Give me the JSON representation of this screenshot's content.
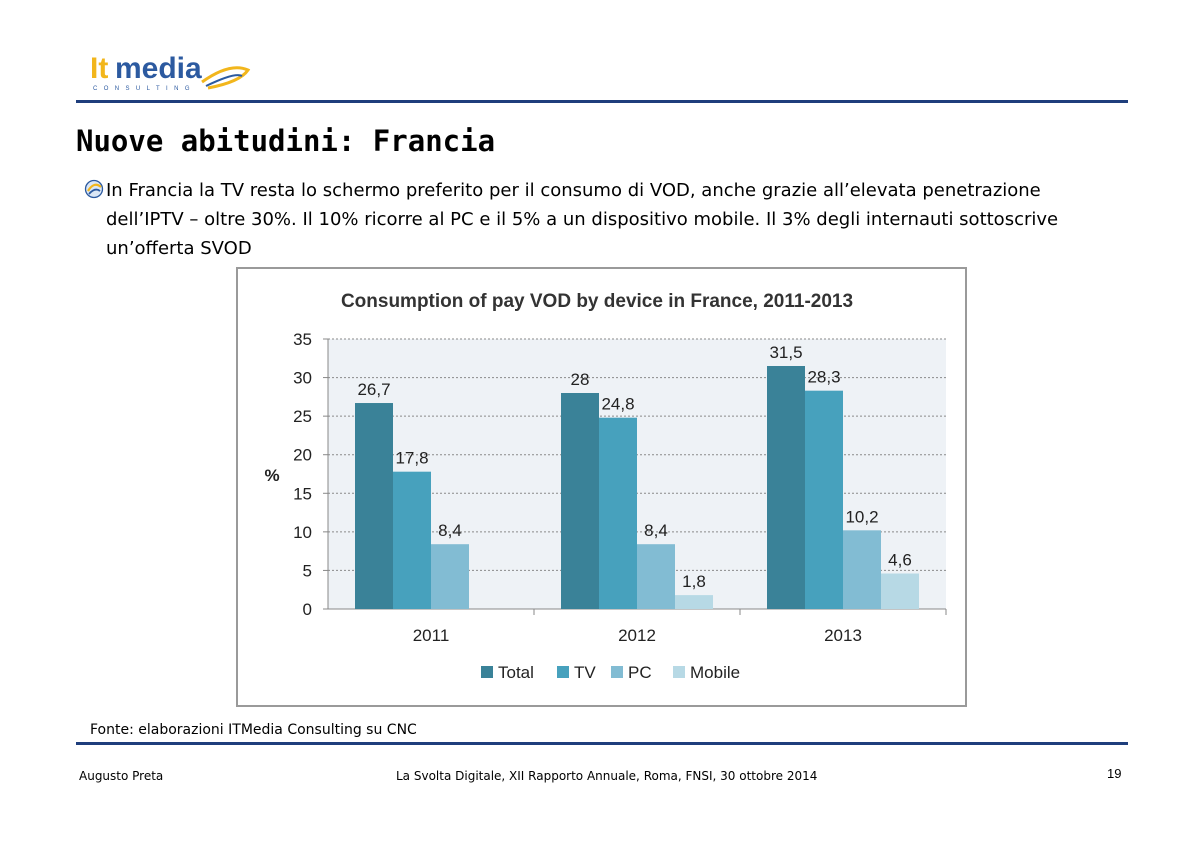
{
  "header": {
    "logo": {
      "brand": "Itmedia",
      "tagline": "CONSULTING"
    },
    "title": "Nuove abitudini: Francia"
  },
  "bullet": {
    "icon": "swirl-bullet-icon",
    "text": "In Francia la TV resta lo schermo preferito per il consumo di VOD, anche grazie all’elevata penetrazione dell’IPTV – oltre 30%. Il 10% ricorre al PC e il 5% a un dispositivo mobile. Il 3% degli internauti sottoscrive un’offerta SVOD"
  },
  "source": "Fonte: elaborazioni ITMedia Consulting su CNC",
  "footer": {
    "author": "Augusto Preta",
    "event": "La Svolta Digitale, XII Rapporto Annuale, Roma, FNSI, 30 ottobre 2014",
    "page": "19"
  },
  "colors": {
    "rule": "#1f3e7c",
    "logo_blue": "#2c5aa0",
    "logo_yellow": "#f2b61c",
    "plot_bg": "#eef2f6"
  },
  "chart_data": {
    "type": "bar",
    "title": "Consumption of pay VOD by device in France, 2011-2013",
    "xlabel": "",
    "ylabel": "%",
    "ylim": [
      0,
      35
    ],
    "yticks": [
      0,
      5,
      10,
      15,
      20,
      25,
      30,
      35
    ],
    "grid": true,
    "legend": "bottom",
    "categories": [
      "2011",
      "2012",
      "2013"
    ],
    "series": [
      {
        "name": "Total",
        "color": "#3a8298",
        "values": [
          26.7,
          28,
          31.5
        ],
        "labels": [
          "26,7",
          "28",
          "31,5"
        ]
      },
      {
        "name": "TV",
        "color": "#47a1bd",
        "values": [
          17.8,
          24.8,
          28.3
        ],
        "labels": [
          "17,8",
          "24,8",
          "28,3"
        ]
      },
      {
        "name": "PC",
        "color": "#82bcd3",
        "values": [
          8.4,
          8.4,
          10.2
        ],
        "labels": [
          "8,4",
          "8,4",
          "10,2"
        ]
      },
      {
        "name": "Mobile",
        "color": "#b7d9e5",
        "values": [
          null,
          1.8,
          4.6
        ],
        "labels": [
          "",
          "1,8",
          "4,6"
        ]
      }
    ]
  }
}
